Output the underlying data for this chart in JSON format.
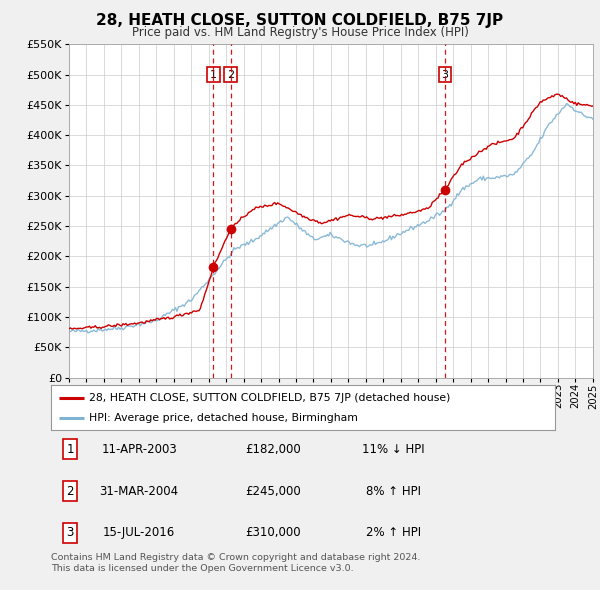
{
  "title": "28, HEATH CLOSE, SUTTON COLDFIELD, B75 7JP",
  "subtitle": "Price paid vs. HM Land Registry's House Price Index (HPI)",
  "legend_line1": "28, HEATH CLOSE, SUTTON COLDFIELD, B75 7JP (detached house)",
  "legend_line2": "HPI: Average price, detached house, Birmingham",
  "transactions": [
    {
      "num": 1,
      "date": "11-APR-2003",
      "date_x": 2003.27,
      "price": 182000,
      "label": "11% ↓ HPI"
    },
    {
      "num": 2,
      "date": "31-MAR-2004",
      "date_x": 2004.25,
      "price": 245000,
      "label": "8% ↑ HPI"
    },
    {
      "num": 3,
      "date": "15-JUL-2016",
      "date_x": 2016.54,
      "price": 310000,
      "label": "2% ↑ HPI"
    }
  ],
  "red_line_color": "#cc0000",
  "blue_line_color": "#7fb3d3",
  "vline_color": "#cc0000",
  "grid_color": "#cccccc",
  "background_color": "#f0f0f0",
  "plot_bg_color": "#ffffff",
  "xmin": 1995,
  "xmax": 2025,
  "ymin": 0,
  "ymax": 550000,
  "yticks": [
    0,
    50000,
    100000,
    150000,
    200000,
    250000,
    300000,
    350000,
    400000,
    450000,
    500000,
    550000
  ],
  "footnote1": "Contains HM Land Registry data © Crown copyright and database right 2024.",
  "footnote2": "This data is licensed under the Open Government Licence v3.0."
}
